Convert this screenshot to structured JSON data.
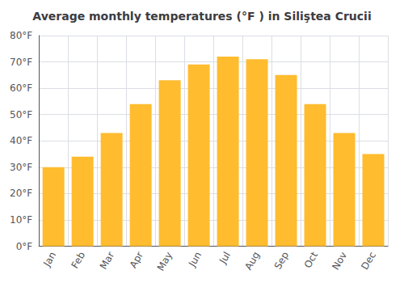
{
  "chart_data": {
    "type": "bar",
    "title": "Average monthly temperatures (°F ) in Siliştea Crucii",
    "categories": [
      "Jan",
      "Feb",
      "Mar",
      "Apr",
      "May",
      "Jun",
      "Jul",
      "Aug",
      "Sep",
      "Oct",
      "Nov",
      "Dec"
    ],
    "values": [
      30,
      34,
      43,
      54,
      63,
      69,
      72,
      71,
      65,
      54,
      43,
      35
    ],
    "color": "#FFBC2E",
    "ylim": [
      0,
      80
    ],
    "yticks": [
      {
        "value": 0,
        "label": "0°F"
      },
      {
        "value": 10,
        "label": "10°F"
      },
      {
        "value": 20,
        "label": "20°F"
      },
      {
        "value": 30,
        "label": "30°F"
      },
      {
        "value": 40,
        "label": "40°F"
      },
      {
        "value": 50,
        "label": "50°F"
      },
      {
        "value": 60,
        "label": "60°F"
      },
      {
        "value": 70,
        "label": "70°F"
      },
      {
        "value": 80,
        "label": "80°F"
      }
    ],
    "grid": true
  }
}
